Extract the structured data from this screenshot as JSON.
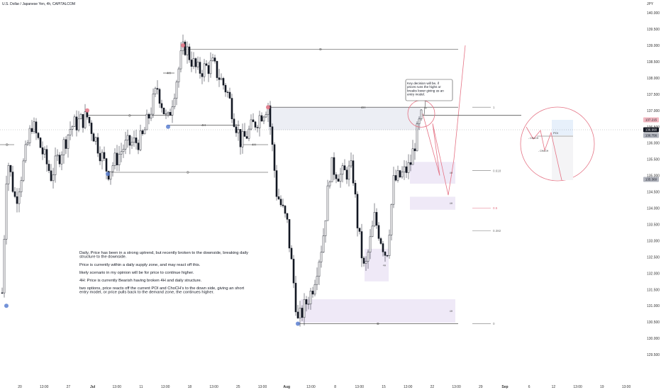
{
  "header": {
    "title": "U.S. Dollar / Japanese Yen, 4h, CAPITALCOM",
    "currency": "JPY"
  },
  "chart_data": {
    "type": "candlestick",
    "y_axis": {
      "ticks": [
        "129.500",
        "130.000",
        "130.500",
        "131.000",
        "131.500",
        "132.000",
        "132.500",
        "133.000",
        "133.500",
        "134.000",
        "134.500",
        "135.000",
        "135.500",
        "136.000",
        "136.500",
        "137.000",
        "137.500",
        "138.000",
        "138.500",
        "139.000",
        "139.500",
        "140.000",
        "140.500"
      ],
      "range": [
        129.2,
        140.8
      ]
    },
    "x_axis": {
      "ticks": [
        "20",
        "13:00",
        "27",
        "Jul",
        "13:00",
        "11",
        "13:00",
        "18",
        "13:00",
        "25",
        "13:00",
        "Aug",
        "13:00",
        "8",
        "13:00",
        "15",
        "13:00",
        "22",
        "13:00",
        "29",
        "Sep",
        "6",
        "12",
        "13:00",
        "19",
        "13:00"
      ]
    },
    "price_badges": [
      {
        "value": "137.215",
        "style": "light"
      },
      {
        "value": "136.990",
        "style": "dark"
      },
      {
        "value": "136.756",
        "style": "mid"
      },
      {
        "value": "135.360",
        "style": "mid"
      }
    ],
    "fib_levels": [
      {
        "label": "1",
        "value": 137.1
      },
      {
        "label": "0.618",
        "value": 135.15
      },
      {
        "label": "0.5",
        "value": 134.0
      },
      {
        "label": "0.382",
        "value": 133.3
      },
      {
        "label": "0",
        "value": 130.45
      }
    ],
    "structure_lines": [
      {
        "label": "D",
        "value": 138.88
      },
      {
        "label": "D",
        "value": 136.85
      },
      {
        "label": "D",
        "value": 135.95
      },
      {
        "label": "D",
        "value": 135.1
      },
      {
        "label": "D",
        "value": 130.45
      },
      {
        "label": "4H",
        "value": 138.15
      },
      {
        "label": "4H",
        "value": 136.55
      },
      {
        "label": "4H",
        "value": 135.95
      },
      {
        "label": "4H",
        "value": 137.1
      }
    ],
    "zones": [
      {
        "label": "4H",
        "low": 134.75,
        "high": 135.42
      },
      {
        "label": "4H",
        "low": 133.95,
        "high": 134.35
      },
      {
        "label": "4H",
        "low": 131.75,
        "high": 132.75
      },
      {
        "label": "4H",
        "low": 130.48,
        "high": 131.2
      }
    ],
    "poi_label": "POI",
    "choch_labels": [
      "CHoCH",
      "CHoCH"
    ],
    "annotations": {
      "callout": "Key decision will be, if prices runs the highs or breaks lower giving us an entry model.",
      "notes": [
        "Daily, Price has been in a strong uptrend, but recently broken to the downside, breaking daily structure to the downside.",
        "Price is currently within a daily supply zone, and may react off this.",
        "likely scenario in my opinion will be for price to continue higher.",
        "4H: Price is currently Bearish having broken 4H and daily structure.",
        "two options, price reacts off the current POI and ChoCH's to the down side, giving an short entry model, or price pulls back to the demand zone, the continues higher."
      ]
    },
    "colors": {
      "up": "#ffffff",
      "down": "#131722",
      "pink": "#e57385",
      "blue": "#5b7fd1",
      "zone": "#efe9f7",
      "axis_text": "#333333"
    }
  }
}
